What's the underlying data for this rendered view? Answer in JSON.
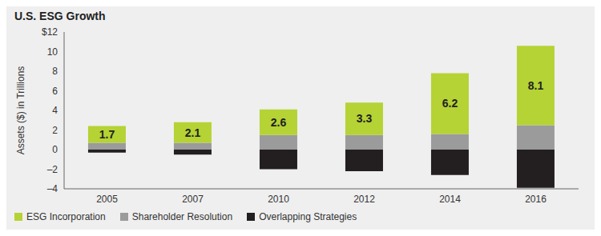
{
  "chart_data": {
    "type": "bar",
    "title": "U.S. ESG Growth",
    "y_label": "Assets ($) in Trillions",
    "categories": [
      "2005",
      "2007",
      "2010",
      "2012",
      "2014",
      "2016"
    ],
    "stacked": true,
    "legend": "bottom left",
    "ylim": [
      -4,
      12
    ],
    "yticks": [
      {
        "value": -4,
        "label": "–4"
      },
      {
        "value": -2,
        "label": "–2"
      },
      0,
      2,
      4,
      6,
      8,
      10,
      {
        "value": 12,
        "label": "$12"
      }
    ],
    "series": [
      {
        "name": "ESG Incorporation",
        "color": "#b5d334",
        "values": [
          1.7,
          2.1,
          2.6,
          3.3,
          6.2,
          8.1
        ],
        "data_labels": true
      },
      {
        "name": "Shareholder Resolution",
        "color": "#9b9b9b",
        "values": [
          0.7,
          0.7,
          1.5,
          1.5,
          1.6,
          2.5
        ]
      },
      {
        "name": "Overlapping Strategies",
        "color": "#231f20",
        "values": [
          -0.3,
          -0.5,
          -2.0,
          -2.2,
          -2.6,
          -3.9
        ]
      }
    ]
  }
}
